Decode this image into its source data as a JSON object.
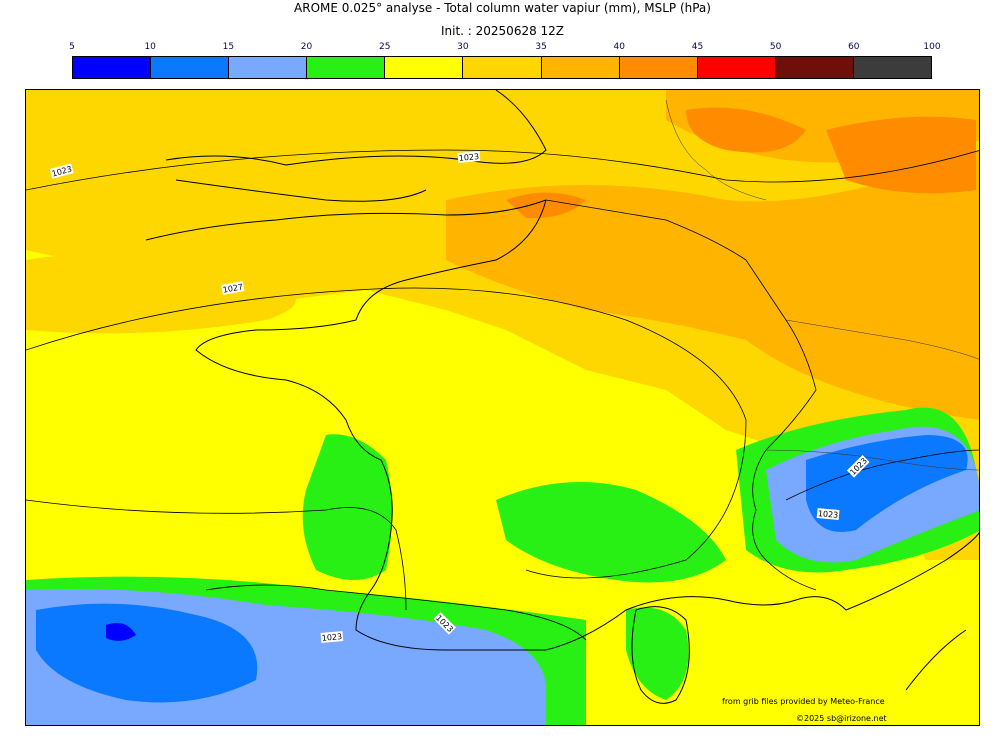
{
  "title": "AROME 0.025° analyse - Total column water vapiur (mm), MSLP (hPa)",
  "subtitle": "Init. : 20250628 12Z",
  "colorbar": {
    "ticks": [
      "5",
      "10",
      "15",
      "20",
      "25",
      "30",
      "35",
      "40",
      "45",
      "50",
      "60",
      "100"
    ],
    "colors": [
      "#0000ff",
      "#0a78ff",
      "#78a8ff",
      "#28f014",
      "#ffff00",
      "#ffd700",
      "#ffb400",
      "#ff8c00",
      "#ff0000",
      "#6e0f0a",
      "#3c3c3c"
    ]
  },
  "isobar_labels": [
    "1023",
    "1023",
    "1027",
    "1023",
    "1023",
    "1023",
    "1023"
  ],
  "credit_source": "from grib files provided by Meteo-France",
  "credit_author": "©2025 sb@irizone.net"
}
